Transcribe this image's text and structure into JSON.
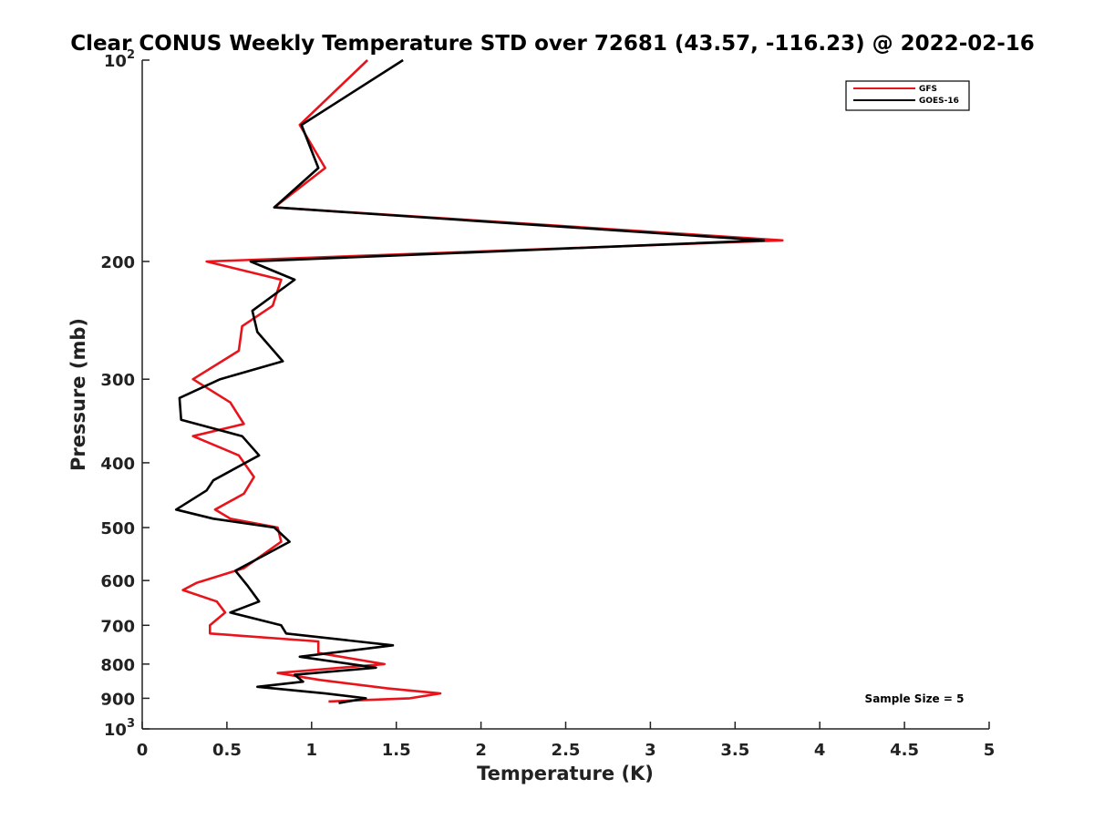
{
  "chart_data": {
    "type": "line",
    "title": "Clear CONUS Weekly Temperature STD over 72681 (43.57, -116.23) @ 2022-02-16",
    "xlabel": "Temperature (K)",
    "ylabel": "Pressure (mb)",
    "xlim": [
      0,
      5
    ],
    "ylim": [
      100,
      1000
    ],
    "yscale": "log",
    "yreversed": true,
    "grid": false,
    "legend_position": "top-right",
    "x_ticks": [
      0,
      0.5,
      1,
      1.5,
      2,
      2.5,
      3,
      3.5,
      4,
      4.5,
      5
    ],
    "x_tick_labels": [
      "0",
      "0.5",
      "1",
      "1.5",
      "2",
      "2.5",
      "3",
      "3.5",
      "4",
      "4.5",
      "5"
    ],
    "y_ticks": [
      100,
      200,
      300,
      400,
      500,
      600,
      700,
      800,
      900,
      1000
    ],
    "y_tick_labels": [
      {
        "base": "10",
        "exp": "2"
      },
      {
        "base": "200",
        "exp": ""
      },
      {
        "base": "300",
        "exp": ""
      },
      {
        "base": "400",
        "exp": ""
      },
      {
        "base": "500",
        "exp": ""
      },
      {
        "base": "600",
        "exp": ""
      },
      {
        "base": "700",
        "exp": ""
      },
      {
        "base": "800",
        "exp": ""
      },
      {
        "base": "900",
        "exp": ""
      },
      {
        "base": "10",
        "exp": "3"
      }
    ],
    "annotation": "Sample Size = 5",
    "series": [
      {
        "name": "GFS",
        "color": "#e8141b",
        "points": [
          {
            "x": 1.33,
            "p": 100
          },
          {
            "x": 0.93,
            "p": 125
          },
          {
            "x": 1.08,
            "p": 145
          },
          {
            "x": 0.78,
            "p": 166
          },
          {
            "x": 3.78,
            "p": 186
          },
          {
            "x": 0.38,
            "p": 200
          },
          {
            "x": 0.82,
            "p": 213
          },
          {
            "x": 0.77,
            "p": 233
          },
          {
            "x": 0.59,
            "p": 250
          },
          {
            "x": 0.57,
            "p": 272
          },
          {
            "x": 0.3,
            "p": 300
          },
          {
            "x": 0.52,
            "p": 325
          },
          {
            "x": 0.6,
            "p": 350
          },
          {
            "x": 0.3,
            "p": 365
          },
          {
            "x": 0.57,
            "p": 390
          },
          {
            "x": 0.66,
            "p": 420
          },
          {
            "x": 0.6,
            "p": 445
          },
          {
            "x": 0.43,
            "p": 470
          },
          {
            "x": 0.52,
            "p": 485
          },
          {
            "x": 0.8,
            "p": 500
          },
          {
            "x": 0.82,
            "p": 525
          },
          {
            "x": 0.6,
            "p": 575
          },
          {
            "x": 0.32,
            "p": 605
          },
          {
            "x": 0.24,
            "p": 620
          },
          {
            "x": 0.44,
            "p": 645
          },
          {
            "x": 0.49,
            "p": 670
          },
          {
            "x": 0.4,
            "p": 700
          },
          {
            "x": 0.4,
            "p": 720
          },
          {
            "x": 1.04,
            "p": 740
          },
          {
            "x": 1.04,
            "p": 770
          },
          {
            "x": 1.43,
            "p": 800
          },
          {
            "x": 0.8,
            "p": 825
          },
          {
            "x": 1.05,
            "p": 845
          },
          {
            "x": 1.45,
            "p": 870
          },
          {
            "x": 1.76,
            "p": 885
          },
          {
            "x": 1.58,
            "p": 900
          },
          {
            "x": 1.1,
            "p": 910
          }
        ]
      },
      {
        "name": "GOES-16",
        "color": "#000000",
        "points": [
          {
            "x": 1.54,
            "p": 100
          },
          {
            "x": 0.94,
            "p": 125
          },
          {
            "x": 1.04,
            "p": 145
          },
          {
            "x": 0.78,
            "p": 166
          },
          {
            "x": 3.67,
            "p": 186
          },
          {
            "x": 0.64,
            "p": 200
          },
          {
            "x": 0.9,
            "p": 213
          },
          {
            "x": 0.65,
            "p": 237
          },
          {
            "x": 0.68,
            "p": 255
          },
          {
            "x": 0.83,
            "p": 282
          },
          {
            "x": 0.46,
            "p": 300
          },
          {
            "x": 0.22,
            "p": 320
          },
          {
            "x": 0.23,
            "p": 345
          },
          {
            "x": 0.59,
            "p": 365
          },
          {
            "x": 0.69,
            "p": 390
          },
          {
            "x": 0.42,
            "p": 425
          },
          {
            "x": 0.38,
            "p": 440
          },
          {
            "x": 0.2,
            "p": 470
          },
          {
            "x": 0.42,
            "p": 485
          },
          {
            "x": 0.78,
            "p": 500
          },
          {
            "x": 0.87,
            "p": 525
          },
          {
            "x": 0.55,
            "p": 580
          },
          {
            "x": 0.62,
            "p": 610
          },
          {
            "x": 0.69,
            "p": 645
          },
          {
            "x": 0.52,
            "p": 670
          },
          {
            "x": 0.82,
            "p": 700
          },
          {
            "x": 0.85,
            "p": 720
          },
          {
            "x": 1.48,
            "p": 750
          },
          {
            "x": 0.93,
            "p": 780
          },
          {
            "x": 1.38,
            "p": 810
          },
          {
            "x": 0.9,
            "p": 830
          },
          {
            "x": 0.95,
            "p": 850
          },
          {
            "x": 0.68,
            "p": 865
          },
          {
            "x": 1.08,
            "p": 885
          },
          {
            "x": 1.32,
            "p": 900
          },
          {
            "x": 1.16,
            "p": 915
          }
        ]
      }
    ]
  }
}
